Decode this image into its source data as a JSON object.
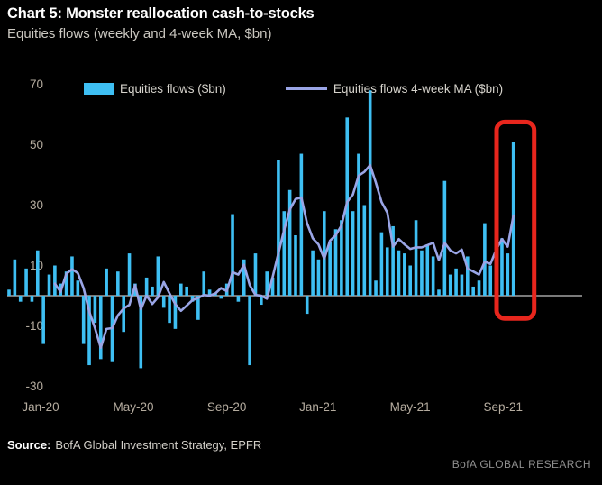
{
  "header": {
    "title": "Chart 5: Monster reallocation cash-to-stocks",
    "subtitle": "Equities flows (weekly and 4-week MA, $bn)"
  },
  "legend": {
    "bars_label": "Equities flows ($bn)",
    "ma_label": "Equities flows 4-week MA ($bn)"
  },
  "footer": {
    "source_label": "Source:",
    "source_text": "BofA Global Investment Strategy, EPFR",
    "brand": "BofA GLOBAL RESEARCH"
  },
  "colors": {
    "background": "#000000",
    "bars": "#3EBFF3",
    "ma_line": "#9AA5E6",
    "zero_line": "#C4C4C4",
    "axis_labels": "#B5AC9F",
    "highlight_box": "#E8261D",
    "title": "#FFFFFF",
    "subtitle": "#CBC8C1",
    "brand": "#8F8F8F"
  },
  "chart_data": {
    "type": "bar",
    "title": "Equities flows (weekly and 4-week MA, $bn)",
    "x_unit": "weeks, Dec-2019 through Oct-2021",
    "xlabel": "",
    "ylabel": "$bn",
    "ylim": [
      -32,
      72
    ],
    "y_ticks": [
      70,
      50,
      30,
      10,
      -10,
      -30
    ],
    "x_ticks": [
      {
        "label": "Jan-20",
        "week": 5.5
      },
      {
        "label": "May-20",
        "week": 21.7
      },
      {
        "label": "Sep-20",
        "week": 38.0
      },
      {
        "label": "Jan-21",
        "week": 53.9
      },
      {
        "label": "May-21",
        "week": 70.0
      },
      {
        "label": "Sep-21",
        "week": 86.2
      }
    ],
    "grid": false,
    "zero_line": true,
    "legend_position": "top",
    "series": [
      {
        "name": "Equities flows ($bn)",
        "type": "bar",
        "values": [
          2,
          12,
          -2,
          9,
          -2,
          15,
          -16,
          7,
          10,
          4,
          8,
          13,
          5,
          -16,
          -23,
          -9,
          -21,
          9,
          -22,
          8,
          -12,
          14,
          4,
          -24,
          6,
          3,
          13,
          -4,
          -9,
          -11,
          4,
          3,
          -2,
          -8,
          8,
          2,
          1,
          -1,
          4,
          27,
          -2,
          12,
          -23,
          14,
          -3,
          8,
          6,
          45,
          28,
          35,
          20,
          47,
          -6,
          15,
          12,
          28,
          18,
          22,
          25,
          59,
          28,
          47,
          30,
          68,
          5,
          21,
          16,
          23,
          15,
          14,
          10,
          25,
          15,
          17,
          13,
          2,
          38,
          7,
          9,
          7,
          13,
          3,
          5,
          24,
          10,
          22,
          19,
          14,
          51
        ]
      },
      {
        "name": "Equities flows 4-week MA ($bn)",
        "type": "line",
        "values": [
          null,
          null,
          null,
          null,
          null,
          null,
          null,
          null,
          4,
          1.25,
          7.25,
          8.75,
          7.5,
          2.5,
          -5.25,
          -10.75,
          -17.25,
          -11,
          -10.75,
          -6.5,
          -4.25,
          -3,
          3.5,
          -4.5,
          0,
          -2.75,
          -0.5,
          4.5,
          0.75,
          -2.75,
          -5,
          -3.25,
          -1.5,
          -0.75,
          0.25,
          0,
          0.75,
          2.5,
          1.5,
          7.75,
          7,
          10.25,
          3.5,
          0.25,
          0,
          -1,
          6.25,
          14,
          21.75,
          28.5,
          32,
          32.5,
          24,
          19,
          17,
          12.25,
          18.25,
          20,
          23.25,
          31,
          33.5,
          39.75,
          41,
          43.25,
          37.5,
          31,
          27.5,
          16.25,
          18.75,
          17,
          15.5,
          16,
          16,
          16.75,
          17.5,
          11.75,
          17.5,
          15,
          14,
          15.25,
          9,
          8,
          7,
          11.25,
          10.5,
          15.25,
          18.75,
          16.25,
          26.5
        ]
      }
    ],
    "annotations": {
      "highlight_box": {
        "description": "red rounded rectangle highlighting the latest reallocation spike",
        "from_week": 86,
        "to_week": 88,
        "v_top": 57.5,
        "v_bottom": -7.5
      }
    }
  }
}
